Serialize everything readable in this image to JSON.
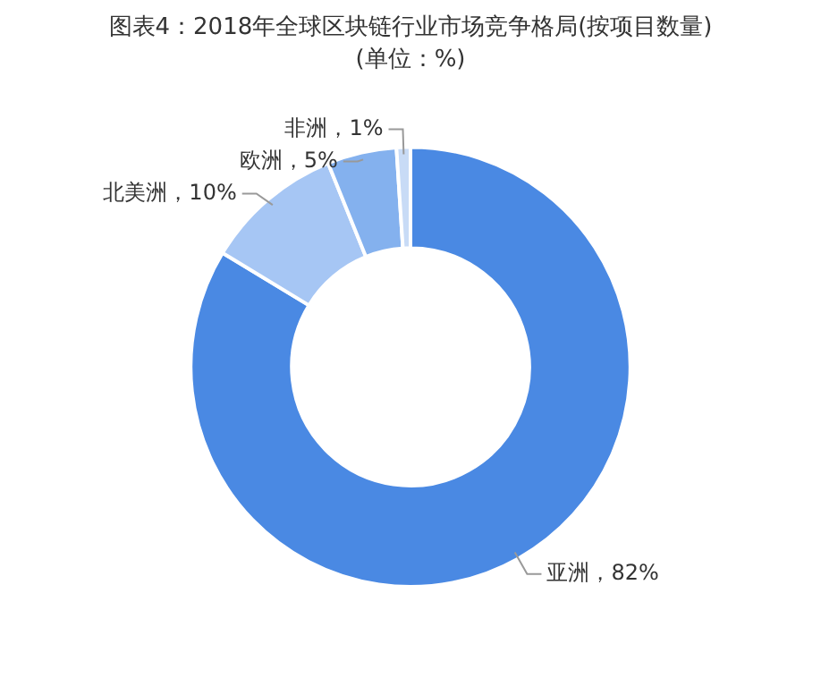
{
  "chart_data": {
    "type": "donut",
    "title": "图表4：2018年全球区块链行业市场竞争格局(按项目数量)",
    "subtitle": "(单位：%)",
    "categories": [
      "亚洲",
      "北美洲",
      "欧洲",
      "非洲"
    ],
    "values": [
      82,
      10,
      5,
      1
    ],
    "colors": [
      "#4a89e3",
      "#a6c6f4",
      "#84b1ee",
      "#c8dbf6"
    ],
    "value_labels": [
      "82%",
      "10%",
      "5%",
      "1%"
    ],
    "legend": false
  }
}
